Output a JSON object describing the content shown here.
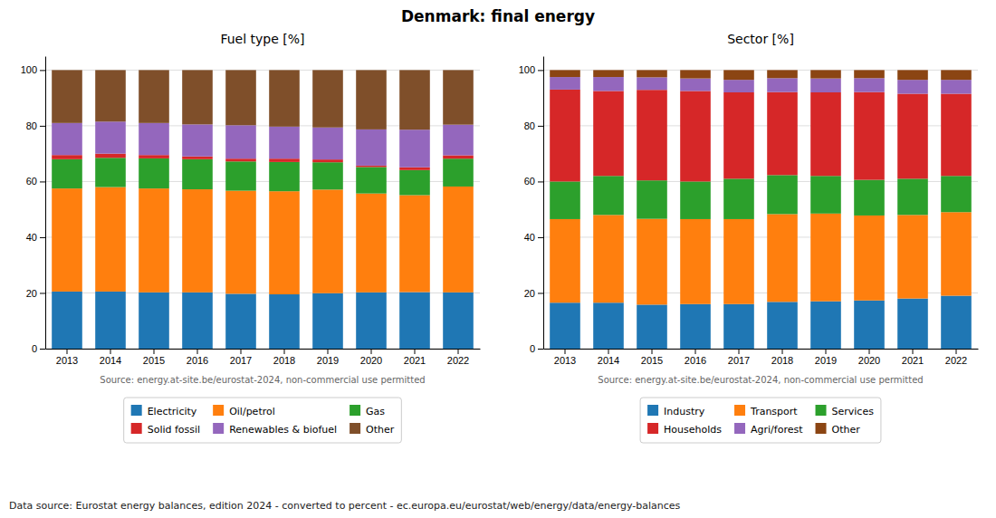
{
  "title": "Denmark: final energy",
  "annotations": [
    "Data source: Eurostat energy balances, edition 2024 - converted to percent - ec.europa.eu/eurostat/web/energy/data/energy-balances"
  ],
  "chart_data": [
    {
      "type": "bar",
      "title": "Fuel type [%]",
      "stacked": true,
      "grid": true,
      "legend": "bottom",
      "annotations": [
        "Source: energy.at-site.be/eurostat-2024, non-commercial use permitted"
      ],
      "categories": [
        2013,
        2014,
        2015,
        2016,
        2017,
        2018,
        2019,
        2020,
        2021,
        2022
      ],
      "ylim": [
        0,
        105
      ],
      "yticks": [
        0,
        20,
        40,
        60,
        80,
        100
      ],
      "series": [
        {
          "name": "Electricity",
          "color": "#1f77b4",
          "values": [
            20.5,
            20.5,
            20.2,
            20.2,
            19.7,
            19.5,
            19.9,
            20.2,
            20.3,
            20.2
          ]
        },
        {
          "name": "Oil/petrol",
          "color": "#ff7f0e",
          "values": [
            37.0,
            37.5,
            37.3,
            37.0,
            37.0,
            37.0,
            37.2,
            35.5,
            34.8,
            38.0
          ]
        },
        {
          "name": "Gas",
          "color": "#2ca02c",
          "values": [
            10.5,
            10.5,
            10.8,
            10.8,
            10.5,
            10.5,
            9.8,
            9.5,
            9.0,
            10.0
          ]
        },
        {
          "name": "Solid fossil",
          "color": "#d62728",
          "values": [
            1.5,
            1.5,
            1.2,
            1.0,
            1.0,
            1.2,
            1.0,
            0.5,
            1.0,
            1.2
          ]
        },
        {
          "name": "Renewables & biofuel",
          "color": "#9467bd",
          "values": [
            11.5,
            11.5,
            11.5,
            11.5,
            12.0,
            11.5,
            11.5,
            13.0,
            13.5,
            11.0
          ]
        },
        {
          "name": "Other",
          "color": "#7f4f2a",
          "values": [
            19.0,
            18.5,
            19.0,
            19.5,
            19.8,
            20.3,
            20.6,
            21.3,
            21.4,
            19.6
          ]
        }
      ]
    },
    {
      "type": "bar",
      "title": "Sector [%]",
      "stacked": true,
      "grid": true,
      "legend": "bottom",
      "annotations": [
        "Source: energy.at-site.be/eurostat-2024, non-commercial use permitted"
      ],
      "categories": [
        2013,
        2014,
        2015,
        2016,
        2017,
        2018,
        2019,
        2020,
        2021,
        2022
      ],
      "ylim": [
        0,
        105
      ],
      "yticks": [
        0,
        20,
        40,
        60,
        80,
        100
      ],
      "series": [
        {
          "name": "Industry",
          "color": "#1f77b4",
          "values": [
            16.5,
            16.5,
            15.8,
            16.0,
            16.0,
            16.8,
            17.0,
            17.3,
            18.0,
            19.0
          ]
        },
        {
          "name": "Transport",
          "color": "#ff7f0e",
          "values": [
            30.0,
            31.5,
            30.8,
            30.5,
            30.5,
            31.5,
            31.5,
            30.5,
            30.0,
            30.0
          ]
        },
        {
          "name": "Services",
          "color": "#2ca02c",
          "values": [
            13.5,
            14.0,
            13.8,
            13.5,
            14.5,
            14.0,
            13.5,
            12.8,
            13.0,
            13.0
          ]
        },
        {
          "name": "Households",
          "color": "#d62728",
          "values": [
            33.0,
            30.5,
            32.5,
            32.5,
            31.0,
            29.8,
            30.0,
            31.5,
            30.5,
            29.5
          ]
        },
        {
          "name": "Agri/forest",
          "color": "#9467bd",
          "values": [
            4.5,
            5.0,
            4.5,
            4.5,
            4.5,
            5.0,
            5.0,
            5.0,
            5.0,
            5.0
          ]
        },
        {
          "name": "Other",
          "color": "#8B4513",
          "values": [
            2.5,
            2.5,
            2.6,
            3.0,
            3.5,
            2.9,
            3.0,
            2.9,
            3.5,
            3.5
          ]
        }
      ]
    }
  ]
}
